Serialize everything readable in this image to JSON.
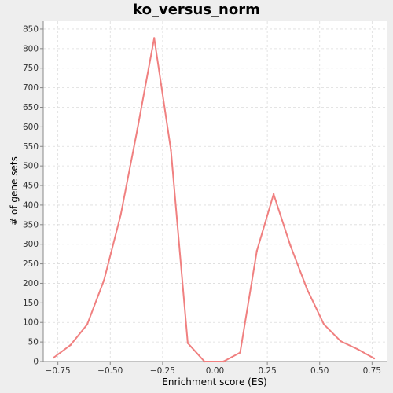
{
  "chart_data": {
    "type": "line",
    "title": "ko_versus_norm",
    "xlabel": "Enrichment score (ES)",
    "ylabel": "# of gene sets",
    "xlim": [
      -0.82,
      0.82
    ],
    "ylim": [
      0,
      870
    ],
    "grid": true,
    "x_ticks": [
      -0.75,
      -0.5,
      -0.25,
      0.0,
      0.25,
      0.5,
      0.75
    ],
    "x_tick_labels": [
      "−0.75",
      "−0.50",
      "−0.25",
      "0.00",
      "0.25",
      "0.50",
      "0.75"
    ],
    "y_ticks": [
      0,
      50,
      100,
      150,
      200,
      250,
      300,
      350,
      400,
      450,
      500,
      550,
      600,
      650,
      700,
      750,
      800,
      850
    ],
    "y_tick_labels": [
      "0",
      "50",
      "100",
      "150",
      "200",
      "250",
      "300",
      "350",
      "400",
      "450",
      "500",
      "550",
      "600",
      "650",
      "700",
      "750",
      "800",
      "850"
    ],
    "series": [
      {
        "color": "#f08080",
        "x": [
          -0.77,
          -0.69,
          -0.61,
          -0.53,
          -0.45,
          -0.37,
          -0.29,
          -0.21,
          -0.13,
          -0.05,
          0.04,
          0.12,
          0.2,
          0.28,
          0.36,
          0.44,
          0.52,
          0.6,
          0.68,
          0.76
        ],
        "y": [
          10,
          42,
          95,
          208,
          375,
          595,
          827,
          540,
          47,
          0,
          0,
          23,
          283,
          428,
          297,
          185,
          95,
          52,
          32,
          8
        ]
      }
    ]
  }
}
